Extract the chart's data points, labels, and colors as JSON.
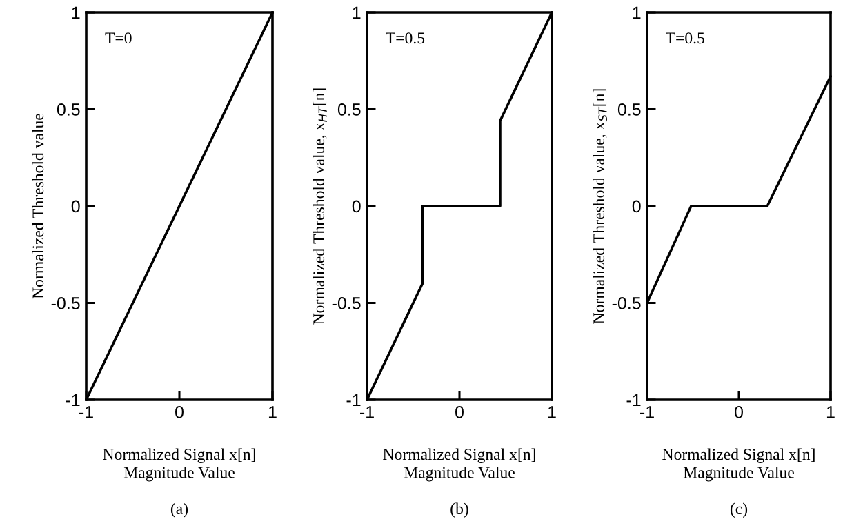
{
  "chart_data": [
    {
      "type": "line",
      "xlabel": "Normalized Signal x[n]\nMagnitude Value",
      "ylabel": "Normalized Threshold value",
      "xlim": [
        -1,
        1
      ],
      "ylim": [
        -1,
        1
      ],
      "xticks": [
        -1,
        0,
        1
      ],
      "yticks": [
        -1,
        -0.5,
        0,
        0.5,
        1
      ],
      "annotations": [
        "T=0",
        "(a)"
      ],
      "series": [
        {
          "color": "#000000",
          "x": [
            -1,
            1
          ],
          "values": [
            -1,
            1
          ]
        }
      ]
    },
    {
      "type": "line",
      "xlabel": "Normalized Signal x[n]\nMagnitude Value",
      "ylabel": "Normalized Threshold value, x$_{HT}$[n]",
      "xlim": [
        -1,
        1
      ],
      "ylim": [
        -1,
        1
      ],
      "xticks": [
        -1,
        0,
        1
      ],
      "yticks": [
        -1,
        -0.5,
        0,
        0.5,
        1
      ],
      "annotations": [
        "T=0.5",
        "(b)"
      ],
      "series": [
        {
          "color": "#000000",
          "x": [
            -1,
            -0.4,
            -0.4,
            0.44,
            0.44,
            1
          ],
          "values": [
            -1,
            -0.4,
            0,
            0,
            0.44,
            1
          ]
        }
      ]
    },
    {
      "type": "line",
      "xlabel": "Normalized Signal x[n]\nMagnitude Value",
      "ylabel": "Normalized Threshold value, x$_{ST}$[n]",
      "xlim": [
        -1,
        1
      ],
      "ylim": [
        -1,
        1
      ],
      "xticks": [
        -1,
        0,
        1
      ],
      "yticks": [
        -1,
        -0.5,
        0,
        0.5,
        1
      ],
      "annotations": [
        "T=0.5",
        "(c)"
      ],
      "series": [
        {
          "color": "#000000",
          "x": [
            -1,
            -0.52,
            0.31,
            1
          ],
          "values": [
            -0.5,
            0,
            0,
            0.67
          ]
        }
      ]
    }
  ]
}
